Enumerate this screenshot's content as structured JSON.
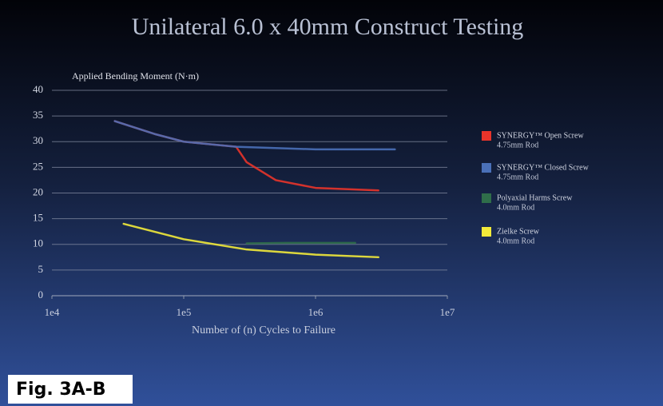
{
  "chart_data": {
    "type": "line",
    "title": "Unilateral 6.0 x 40mm Construct Testing",
    "y_label": "Applied Bending Moment (N·m)",
    "x_label": "Number of (n) Cycles to Failure",
    "figure_label": "Fig. 3A-B",
    "xscale": "log",
    "xlim": [
      10000,
      10000000
    ],
    "xticks": [
      {
        "value": 10000,
        "label": "1e4"
      },
      {
        "value": 100000,
        "label": "1e5"
      },
      {
        "value": 1000000,
        "label": "1e6"
      },
      {
        "value": 10000000,
        "label": "1e7"
      }
    ],
    "ylim": [
      0,
      40
    ],
    "yticks": [
      0,
      5,
      10,
      15,
      20,
      25,
      30,
      35,
      40
    ],
    "grid": true,
    "legend": "right",
    "series": [
      {
        "name": "SYNERGY™ Open Screw",
        "rod": "4.75mm Rod",
        "color": "#e8342a",
        "x": [
          30000,
          60000,
          100000,
          250000,
          300000,
          500000,
          1000000,
          3000000
        ],
        "values": [
          34,
          31.5,
          30,
          29,
          26,
          22.5,
          21,
          20.5
        ]
      },
      {
        "name": "SYNERGY™ Closed Screw",
        "rod": "4.75mm Rod",
        "color": "#4a70b8",
        "x": [
          30000,
          60000,
          100000,
          250000,
          1000000,
          4000000
        ],
        "values": [
          34,
          31.5,
          30,
          29,
          28.5,
          28.5
        ]
      },
      {
        "name": "Polyaxial Harms Screw",
        "rod": "4.0mm Rod",
        "color": "#2f6e4a",
        "x": [
          300000,
          600000,
          1000000,
          2000000
        ],
        "values": [
          10.2,
          10.3,
          10.3,
          10.3
        ]
      },
      {
        "name": "Zielke Screw",
        "rod": "4.0mm Rod",
        "color": "#f2ea3a",
        "x": [
          35000,
          100000,
          300000,
          1000000,
          3000000
        ],
        "values": [
          14,
          11,
          9,
          8,
          7.5
        ]
      }
    ]
  }
}
